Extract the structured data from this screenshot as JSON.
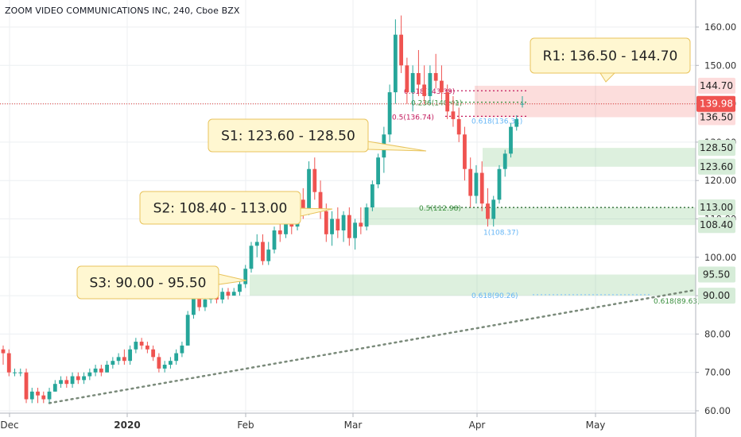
{
  "title": "ZOOM VIDEO COMMUNICATIONS INC, 240, Cboe BZX",
  "chart_data": {
    "type": "candlestick",
    "symbol": "ZOOM VIDEO COMMUNICATIONS INC",
    "interval": "240",
    "exchange": "Cboe BZX",
    "last_price": 139.98,
    "y_ticks": [
      60,
      70,
      80,
      90,
      100,
      110,
      120,
      130,
      140,
      150,
      160
    ],
    "y_tick_labels": [
      "60.00",
      "70.00",
      "80.00",
      "90.00",
      "100.00",
      "110.00",
      "120.00",
      "130.00",
      "140.00",
      "150.00",
      "160.00"
    ],
    "x_tick_labels": [
      "Dec",
      "2020",
      "Feb",
      "Mar",
      "Apr",
      "May"
    ],
    "grid": true,
    "zones": [
      {
        "name": "R1",
        "label": "R1: 136.50 - 144.70",
        "low": 136.5,
        "high": 144.7,
        "kind": "resistance"
      },
      {
        "name": "S1",
        "label": "S1: 123.60 - 128.50",
        "low": 123.6,
        "high": 128.5,
        "kind": "support"
      },
      {
        "name": "S2",
        "label": "S2: 108.40 - 113.00",
        "low": 108.4,
        "high": 113.0,
        "kind": "support"
      },
      {
        "name": "S3",
        "label": "S3: 90.00 - 95.50",
        "low": 90.0,
        "high": 95.5,
        "kind": "support"
      }
    ],
    "zone_price_labels": [
      "144.70",
      "136.50",
      "128.50",
      "123.60",
      "113.00",
      "108.40",
      "95.50",
      "90.00"
    ],
    "fib_labels": [
      {
        "text": "0.618(143.39)",
        "value": 143.39,
        "color": "#c2185b"
      },
      {
        "text": "0.236(140.41)",
        "value": 140.41,
        "color": "#388e3c"
      },
      {
        "text": "0.5(136.74)",
        "value": 136.74,
        "color": "#c2185b"
      },
      {
        "text": "0.618(136.31)",
        "value": 136.31,
        "color": "#64b5f6"
      },
      {
        "text": "0.5(112.98)",
        "value": 112.98,
        "color": "#388e3c"
      },
      {
        "text": "1(108.37)",
        "value": 108.37,
        "color": "#64b5f6"
      },
      {
        "text": "0.618(90.26)",
        "value": 90.26,
        "color": "#64b5f6"
      },
      {
        "text": "0.618(89.63)",
        "value": 89.63,
        "color": "#388e3c"
      }
    ],
    "trendline": {
      "start": {
        "date": "2019-12-12",
        "value": 62
      },
      "end": {
        "date": "2020-05-31",
        "value": 91.5
      },
      "style": "dotted"
    },
    "candles": [
      {
        "o": 76,
        "h": 77,
        "l": 72,
        "c": 75
      },
      {
        "o": 75,
        "h": 76,
        "l": 69,
        "c": 70
      },
      {
        "o": 70,
        "h": 71,
        "l": 69,
        "c": 70
      },
      {
        "o": 70,
        "h": 71,
        "l": 69,
        "c": 70
      },
      {
        "o": 70,
        "h": 71,
        "l": 62,
        "c": 63
      },
      {
        "o": 63,
        "h": 66,
        "l": 62,
        "c": 65
      },
      {
        "o": 65,
        "h": 66,
        "l": 62,
        "c": 64
      },
      {
        "o": 64,
        "h": 65,
        "l": 62,
        "c": 63
      },
      {
        "o": 63,
        "h": 66,
        "l": 62,
        "c": 65
      },
      {
        "o": 65,
        "h": 68,
        "l": 65,
        "c": 67
      },
      {
        "o": 67,
        "h": 69,
        "l": 66,
        "c": 68
      },
      {
        "o": 68,
        "h": 69,
        "l": 66,
        "c": 67
      },
      {
        "o": 67,
        "h": 70,
        "l": 66,
        "c": 69
      },
      {
        "o": 69,
        "h": 70,
        "l": 67,
        "c": 68
      },
      {
        "o": 68,
        "h": 70,
        "l": 67,
        "c": 69
      },
      {
        "o": 69,
        "h": 71,
        "l": 68,
        "c": 70
      },
      {
        "o": 70,
        "h": 72,
        "l": 69,
        "c": 71
      },
      {
        "o": 71,
        "h": 72,
        "l": 69,
        "c": 70
      },
      {
        "o": 70,
        "h": 73,
        "l": 70,
        "c": 72
      },
      {
        "o": 72,
        "h": 74,
        "l": 71,
        "c": 73
      },
      {
        "o": 73,
        "h": 75,
        "l": 72,
        "c": 74
      },
      {
        "o": 74,
        "h": 76,
        "l": 72,
        "c": 73
      },
      {
        "o": 73,
        "h": 77,
        "l": 72,
        "c": 76
      },
      {
        "o": 76,
        "h": 79,
        "l": 75,
        "c": 78
      },
      {
        "o": 78,
        "h": 79,
        "l": 76,
        "c": 77
      },
      {
        "o": 77,
        "h": 78,
        "l": 75,
        "c": 76
      },
      {
        "o": 76,
        "h": 77,
        "l": 73,
        "c": 74
      },
      {
        "o": 74,
        "h": 75,
        "l": 70,
        "c": 71
      },
      {
        "o": 71,
        "h": 73,
        "l": 70,
        "c": 72
      },
      {
        "o": 72,
        "h": 74,
        "l": 71,
        "c": 73
      },
      {
        "o": 73,
        "h": 76,
        "l": 72,
        "c": 75
      },
      {
        "o": 75,
        "h": 78,
        "l": 74,
        "c": 77
      },
      {
        "o": 77,
        "h": 86,
        "l": 77,
        "c": 85
      },
      {
        "o": 85,
        "h": 93,
        "l": 84,
        "c": 92
      },
      {
        "o": 92,
        "h": 93,
        "l": 86,
        "c": 87
      },
      {
        "o": 87,
        "h": 90,
        "l": 86,
        "c": 89
      },
      {
        "o": 89,
        "h": 91,
        "l": 88,
        "c": 90
      },
      {
        "o": 90,
        "h": 92,
        "l": 88,
        "c": 89
      },
      {
        "o": 89,
        "h": 92,
        "l": 88,
        "c": 91
      },
      {
        "o": 91,
        "h": 92,
        "l": 89,
        "c": 90
      },
      {
        "o": 90,
        "h": 92,
        "l": 90,
        "c": 91
      },
      {
        "o": 91,
        "h": 94,
        "l": 90,
        "c": 93
      },
      {
        "o": 93,
        "h": 98,
        "l": 92,
        "c": 97
      },
      {
        "o": 97,
        "h": 104,
        "l": 96,
        "c": 103
      },
      {
        "o": 103,
        "h": 106,
        "l": 100,
        "c": 104
      },
      {
        "o": 104,
        "h": 106,
        "l": 98,
        "c": 99
      },
      {
        "o": 99,
        "h": 104,
        "l": 98,
        "c": 102
      },
      {
        "o": 102,
        "h": 108,
        "l": 101,
        "c": 107
      },
      {
        "o": 107,
        "h": 110,
        "l": 104,
        "c": 106
      },
      {
        "o": 106,
        "h": 110,
        "l": 105,
        "c": 109
      },
      {
        "o": 109,
        "h": 113,
        "l": 106,
        "c": 108
      },
      {
        "o": 108,
        "h": 116,
        "l": 107,
        "c": 115
      },
      {
        "o": 115,
        "h": 118,
        "l": 110,
        "c": 112
      },
      {
        "o": 112,
        "h": 125,
        "l": 111,
        "c": 123
      },
      {
        "o": 123,
        "h": 126,
        "l": 115,
        "c": 117
      },
      {
        "o": 117,
        "h": 120,
        "l": 110,
        "c": 112
      },
      {
        "o": 112,
        "h": 114,
        "l": 104,
        "c": 106
      },
      {
        "o": 106,
        "h": 112,
        "l": 103,
        "c": 110
      },
      {
        "o": 110,
        "h": 113,
        "l": 105,
        "c": 107
      },
      {
        "o": 107,
        "h": 112,
        "l": 104,
        "c": 111
      },
      {
        "o": 111,
        "h": 113,
        "l": 103,
        "c": 105
      },
      {
        "o": 105,
        "h": 110,
        "l": 102,
        "c": 109
      },
      {
        "o": 109,
        "h": 113,
        "l": 106,
        "c": 108
      },
      {
        "o": 108,
        "h": 114,
        "l": 107,
        "c": 113
      },
      {
        "o": 113,
        "h": 120,
        "l": 112,
        "c": 119
      },
      {
        "o": 119,
        "h": 127,
        "l": 118,
        "c": 126
      },
      {
        "o": 126,
        "h": 134,
        "l": 122,
        "c": 132
      },
      {
        "o": 132,
        "h": 145,
        "l": 130,
        "c": 143
      },
      {
        "o": 143,
        "h": 162,
        "l": 140,
        "c": 158
      },
      {
        "o": 158,
        "h": 163,
        "l": 148,
        "c": 150
      },
      {
        "o": 150,
        "h": 152,
        "l": 140,
        "c": 143
      },
      {
        "o": 143,
        "h": 150,
        "l": 138,
        "c": 148
      },
      {
        "o": 148,
        "h": 154,
        "l": 142,
        "c": 145
      },
      {
        "o": 145,
        "h": 150,
        "l": 140,
        "c": 142
      },
      {
        "o": 142,
        "h": 150,
        "l": 140,
        "c": 148
      },
      {
        "o": 148,
        "h": 153,
        "l": 144,
        "c": 146
      },
      {
        "o": 146,
        "h": 150,
        "l": 141,
        "c": 143
      },
      {
        "o": 143,
        "h": 145,
        "l": 136,
        "c": 138
      },
      {
        "o": 138,
        "h": 142,
        "l": 134,
        "c": 136
      },
      {
        "o": 136,
        "h": 139,
        "l": 130,
        "c": 132
      },
      {
        "o": 132,
        "h": 134,
        "l": 120,
        "c": 123
      },
      {
        "o": 123,
        "h": 126,
        "l": 113,
        "c": 116
      },
      {
        "o": 116,
        "h": 124,
        "l": 114,
        "c": 122
      },
      {
        "o": 122,
        "h": 125,
        "l": 112,
        "c": 114
      },
      {
        "o": 114,
        "h": 118,
        "l": 108,
        "c": 110
      },
      {
        "o": 110,
        "h": 116,
        "l": 108,
        "c": 115
      },
      {
        "o": 115,
        "h": 124,
        "l": 114,
        "c": 123
      },
      {
        "o": 123,
        "h": 128,
        "l": 121,
        "c": 127
      },
      {
        "o": 127,
        "h": 135,
        "l": 126,
        "c": 134
      },
      {
        "o": 134,
        "h": 137,
        "l": 133,
        "c": 136
      },
      {
        "o": 140,
        "h": 142,
        "l": 139,
        "c": 140
      }
    ]
  },
  "colors": {
    "up": "#26a69a",
    "down": "#ef5350",
    "support_zone": "rgba(102,187,106,0.22)",
    "resistance_zone": "rgba(239,83,80,0.2)",
    "trendline": "#7a8a7a",
    "last_price_box": "#ef5350"
  }
}
